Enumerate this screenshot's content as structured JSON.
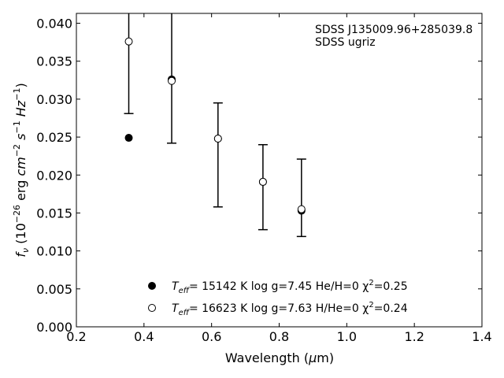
{
  "chart_data": {
    "type": "scatter",
    "title": "",
    "xlabel_main": "Wavelength (",
    "xlabel_mu": "μ",
    "xlabel_unit": "m)",
    "ylabel_f": "f",
    "ylabel_nu": "ν",
    "ylabel_p1": " (10",
    "ylabel_exp1": "−26",
    "ylabel_p2": " erg ",
    "ylabel_cm": "cm",
    "ylabel_exp2": "−2",
    "ylabel_s": "s",
    "ylabel_exp3": "−1",
    "ylabel_hz": "Hz",
    "ylabel_exp4": "−1",
    "ylabel_close": ")",
    "xlim": [
      0.2,
      1.4
    ],
    "ylim": [
      0.0,
      0.0413
    ],
    "xticks": [
      0.2,
      0.4,
      0.6,
      0.8,
      1.0,
      1.2,
      1.4
    ],
    "xtick_labels": [
      "0.2",
      "0.4",
      "0.6",
      "0.8",
      "1.0",
      "1.2",
      "1.4"
    ],
    "yticks": [
      0.0,
      0.005,
      0.01,
      0.015,
      0.02,
      0.025,
      0.03,
      0.035,
      0.04
    ],
    "ytick_labels": [
      "0.000",
      "0.005",
      "0.010",
      "0.015",
      "0.020",
      "0.025",
      "0.030",
      "0.035",
      "0.040"
    ],
    "grid": false,
    "legend_placement": "bottom-center",
    "annotation": [
      "SDSS J135009.96+285039.8",
      "SDSS ugriz"
    ],
    "observed": {
      "x": [
        0.355,
        0.482,
        0.619,
        0.752,
        0.866
      ],
      "y": [
        0.0376,
        0.0325,
        0.0248,
        0.0191,
        0.0154
      ],
      "yerr_low": [
        0.0095,
        0.0083,
        0.009,
        0.0063,
        0.0035
      ],
      "yerr_high": [
        0.0095,
        0.009,
        0.0047,
        0.0049,
        0.0067
      ]
    },
    "series": [
      {
        "marker": "filled",
        "x": [
          0.355,
          0.482,
          0.619,
          0.752,
          0.866
        ],
        "y": [
          0.0249,
          0.0326,
          0.0248,
          0.0191,
          0.0153
        ],
        "legend_teff": "T",
        "legend_eff": "eff",
        "legend_rest": "= 15142 K  log g=7.45  He/H=0  χ",
        "legend_sup": "2",
        "legend_end": "=0.25"
      },
      {
        "marker": "open",
        "x": [
          0.355,
          0.482,
          0.619,
          0.752,
          0.866
        ],
        "y": [
          0.0376,
          0.0324,
          0.0248,
          0.0191,
          0.0155
        ],
        "legend_teff": "T",
        "legend_eff": "eff",
        "legend_rest": "= 16623 K  log g=7.63  H/He=0  χ",
        "legend_sup": "2",
        "legend_end": "=0.24"
      }
    ]
  }
}
